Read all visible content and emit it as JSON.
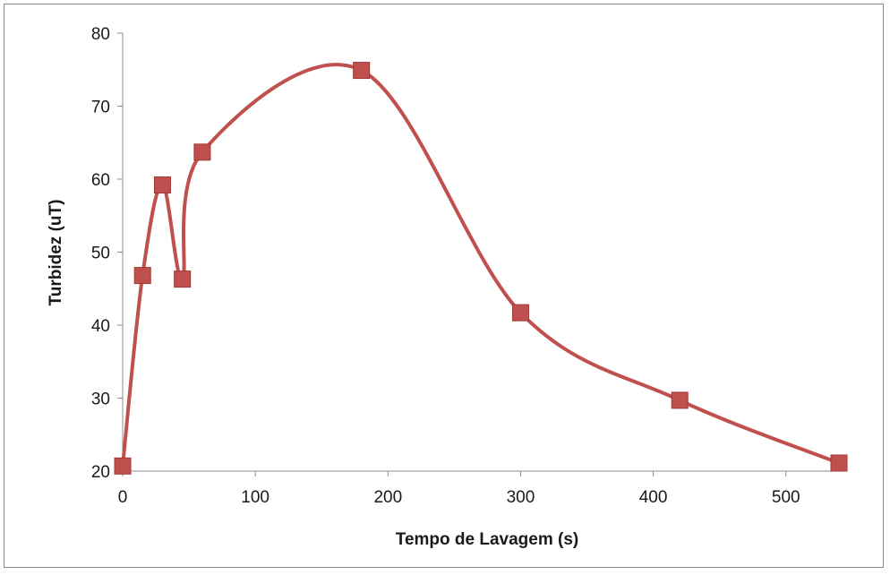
{
  "chart_data": {
    "type": "line",
    "title": "",
    "xlabel": "Tempo de Lavagem (s)",
    "ylabel": "Turbidez (uT)",
    "xlim": [
      0,
      540
    ],
    "ylim": [
      20,
      80
    ],
    "xticks": [
      0,
      100,
      200,
      300,
      400,
      500
    ],
    "yticks": [
      20,
      30,
      40,
      50,
      60,
      70,
      80
    ],
    "grid": false,
    "legend": "none",
    "smoothed": true,
    "marker": "square",
    "series_color": "#c0504d",
    "marker_color": "#c0504d",
    "series": [
      {
        "x": [
          0,
          15,
          30,
          45,
          60,
          180,
          300,
          420,
          540
        ],
        "values": [
          20.7,
          46.8,
          59.2,
          46.3,
          63.7,
          74.9,
          41.7,
          29.7,
          21.1
        ]
      }
    ]
  }
}
